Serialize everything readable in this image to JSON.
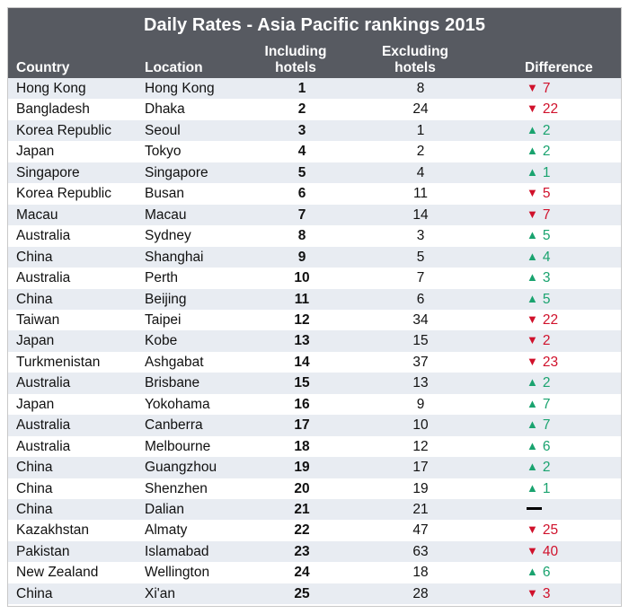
{
  "chart_data": {
    "type": "table",
    "title": "Daily Rates - Asia Pacific rankings 2015",
    "columns": [
      "Country",
      "Location",
      "Including hotels",
      "Excluding hotels",
      "Difference"
    ],
    "column_headers": {
      "country": "Country",
      "location": "Location",
      "including_line1": "Including",
      "including_line2": "hotels",
      "excluding_line1": "Excluding",
      "excluding_line2": "hotels",
      "difference": "Difference"
    },
    "rows": [
      {
        "country": "Hong Kong",
        "location": "Hong Kong",
        "including": "1",
        "excluding": "8",
        "direction": "down",
        "difference": "7"
      },
      {
        "country": "Bangladesh",
        "location": "Dhaka",
        "including": "2",
        "excluding": "24",
        "direction": "down",
        "difference": "22"
      },
      {
        "country": "Korea Republic",
        "location": "Seoul",
        "including": "3",
        "excluding": "1",
        "direction": "up",
        "difference": "2"
      },
      {
        "country": "Japan",
        "location": "Tokyo",
        "including": "4",
        "excluding": "2",
        "direction": "up",
        "difference": "2"
      },
      {
        "country": "Singapore",
        "location": "Singapore",
        "including": "5",
        "excluding": "4",
        "direction": "up",
        "difference": "1"
      },
      {
        "country": "Korea Republic",
        "location": "Busan",
        "including": "6",
        "excluding": "11",
        "direction": "down",
        "difference": "5"
      },
      {
        "country": "Macau",
        "location": "Macau",
        "including": "7",
        "excluding": "14",
        "direction": "down",
        "difference": "7"
      },
      {
        "country": "Australia",
        "location": "Sydney",
        "including": "8",
        "excluding": "3",
        "direction": "up",
        "difference": "5"
      },
      {
        "country": "China",
        "location": "Shanghai",
        "including": "9",
        "excluding": "5",
        "direction": "up",
        "difference": "4"
      },
      {
        "country": "Australia",
        "location": "Perth",
        "including": "10",
        "excluding": "7",
        "direction": "up",
        "difference": "3"
      },
      {
        "country": "China",
        "location": "Beijing",
        "including": "11",
        "excluding": "6",
        "direction": "up",
        "difference": "5"
      },
      {
        "country": "Taiwan",
        "location": "Taipei",
        "including": "12",
        "excluding": "34",
        "direction": "down",
        "difference": "22"
      },
      {
        "country": "Japan",
        "location": "Kobe",
        "including": "13",
        "excluding": "15",
        "direction": "down",
        "difference": "2"
      },
      {
        "country": "Turkmenistan",
        "location": "Ashgabat",
        "including": "14",
        "excluding": "37",
        "direction": "down",
        "difference": "23"
      },
      {
        "country": "Australia",
        "location": "Brisbane",
        "including": "15",
        "excluding": "13",
        "direction": "up",
        "difference": "2"
      },
      {
        "country": "Japan",
        "location": "Yokohama",
        "including": "16",
        "excluding": "9",
        "direction": "up",
        "difference": "7"
      },
      {
        "country": "Australia",
        "location": "Canberra",
        "including": "17",
        "excluding": "10",
        "direction": "up",
        "difference": "7"
      },
      {
        "country": "Australia",
        "location": "Melbourne",
        "including": "18",
        "excluding": "12",
        "direction": "up",
        "difference": "6"
      },
      {
        "country": "China",
        "location": "Guangzhou",
        "including": "19",
        "excluding": "17",
        "direction": "up",
        "difference": "2"
      },
      {
        "country": "China",
        "location": "Shenzhen",
        "including": "20",
        "excluding": "19",
        "direction": "up",
        "difference": "1"
      },
      {
        "country": "China",
        "location": "Dalian",
        "including": "21",
        "excluding": "21",
        "direction": "none",
        "difference": ""
      },
      {
        "country": "Kazakhstan",
        "location": "Almaty",
        "including": "22",
        "excluding": "47",
        "direction": "down",
        "difference": "25"
      },
      {
        "country": "Pakistan",
        "location": "Islamabad",
        "including": "23",
        "excluding": "63",
        "direction": "down",
        "difference": "40"
      },
      {
        "country": "New Zealand",
        "location": "Wellington",
        "including": "24",
        "excluding": "18",
        "direction": "up",
        "difference": "6"
      },
      {
        "country": "China",
        "location": "Xi'an",
        "including": "25",
        "excluding": "28",
        "direction": "down",
        "difference": "3"
      }
    ],
    "colors": {
      "header_background": "#575a61",
      "header_text": "#ffffff",
      "alt_row_background": "#e8ecf2",
      "up": "#1aa36f",
      "down": "#d0112b",
      "no_change": "#000000"
    },
    "icons": {
      "up": "triangle-up-icon",
      "down": "triangle-down-icon",
      "none": "dash-icon"
    }
  }
}
